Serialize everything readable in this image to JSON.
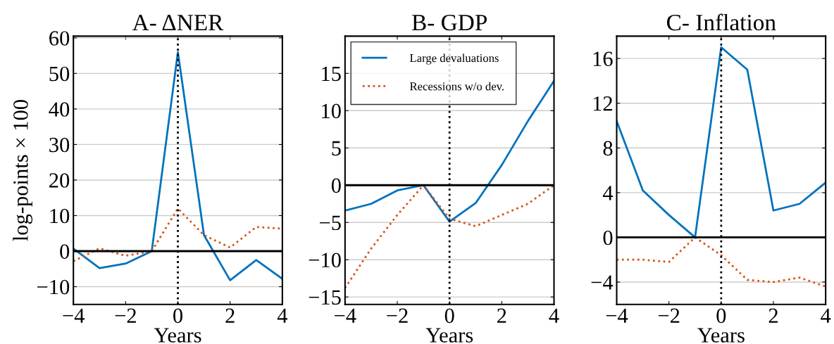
{
  "chart_data": [
    {
      "type": "line",
      "title": "A- ΔNER",
      "xlabel": "Years",
      "ylabel": "log-points × 100",
      "x": [
        -4,
        -3,
        -2,
        -1,
        0,
        1,
        2,
        3,
        4
      ],
      "xlim": [
        -4,
        4
      ],
      "xticks": [
        -4,
        -2,
        0,
        2,
        4
      ],
      "ylim": [
        -15,
        60.5
      ],
      "yticks": [
        -10,
        0,
        10,
        20,
        30,
        40,
        50,
        60
      ],
      "grid": "y",
      "legend": false,
      "series": [
        {
          "color": "#0072bd",
          "line_style": "solid",
          "values": [
            0.7,
            -4.8,
            -3.5,
            0,
            56,
            4.5,
            -8.2,
            -2.5,
            -7.8
          ]
        },
        {
          "color": "#d95319",
          "line_style": "dotted",
          "values": [
            -2.8,
            0.8,
            -1.3,
            0,
            12,
            4.5,
            1,
            6.8,
            6.3
          ]
        }
      ],
      "ref_lines": [
        {
          "axis": "y",
          "value": 0,
          "color": "#000000",
          "line_style": "solid"
        },
        {
          "axis": "x",
          "value": 0,
          "color": "#000000",
          "line_style": "dotted"
        }
      ]
    },
    {
      "type": "line",
      "title": "B- GDP",
      "xlabel": "Years",
      "x": [
        -4,
        -3,
        -2,
        -1,
        0,
        1,
        2,
        3,
        4
      ],
      "xlim": [
        -4,
        4
      ],
      "xticks": [
        -4,
        -2,
        0,
        2,
        4
      ],
      "ylim": [
        -16,
        20
      ],
      "yticks": [
        -15,
        -10,
        -5,
        0,
        5,
        10,
        15
      ],
      "grid": "y",
      "legend": "top left",
      "series": [
        {
          "name": "Large devaluations",
          "color": "#0072bd",
          "line_style": "solid",
          "values": [
            -3.4,
            -2.5,
            -0.7,
            0,
            -4.9,
            -2.4,
            2.7,
            8.6,
            14.0
          ]
        },
        {
          "name": "Recessions w/o dev.",
          "color": "#d95319",
          "line_style": "dotted",
          "values": [
            -13.8,
            -8.5,
            -4,
            0,
            -4.5,
            -5.5,
            -4.0,
            -2.5,
            0
          ]
        }
      ],
      "ref_lines": [
        {
          "axis": "y",
          "value": 0,
          "color": "#000000",
          "line_style": "solid"
        },
        {
          "axis": "x",
          "value": 0,
          "color": "#000000",
          "line_style": "dotted"
        }
      ]
    },
    {
      "type": "line",
      "title": "C- Inflation",
      "xlabel": "Years",
      "x": [
        -4,
        -3,
        -2,
        -1,
        0,
        1,
        2,
        3,
        4
      ],
      "xlim": [
        -4,
        4
      ],
      "xticks": [
        -4,
        -2,
        0,
        2,
        4
      ],
      "ylim": [
        -6,
        18
      ],
      "yticks": [
        -4,
        0,
        4,
        8,
        12,
        16
      ],
      "grid": "y",
      "legend": false,
      "series": [
        {
          "color": "#0072bd",
          "line_style": "solid",
          "values": [
            10.4,
            4.2,
            2.0,
            0,
            17,
            15,
            2.4,
            3.0,
            4.9
          ]
        },
        {
          "color": "#d95319",
          "line_style": "dotted",
          "values": [
            -2.0,
            -2.0,
            -2.2,
            0,
            -1.6,
            -3.8,
            -4.0,
            -3.6,
            -4.4
          ]
        }
      ],
      "ref_lines": [
        {
          "axis": "y",
          "value": 0,
          "color": "#000000",
          "line_style": "solid"
        },
        {
          "axis": "x",
          "value": 0,
          "color": "#000000",
          "line_style": "dotted"
        }
      ]
    }
  ]
}
